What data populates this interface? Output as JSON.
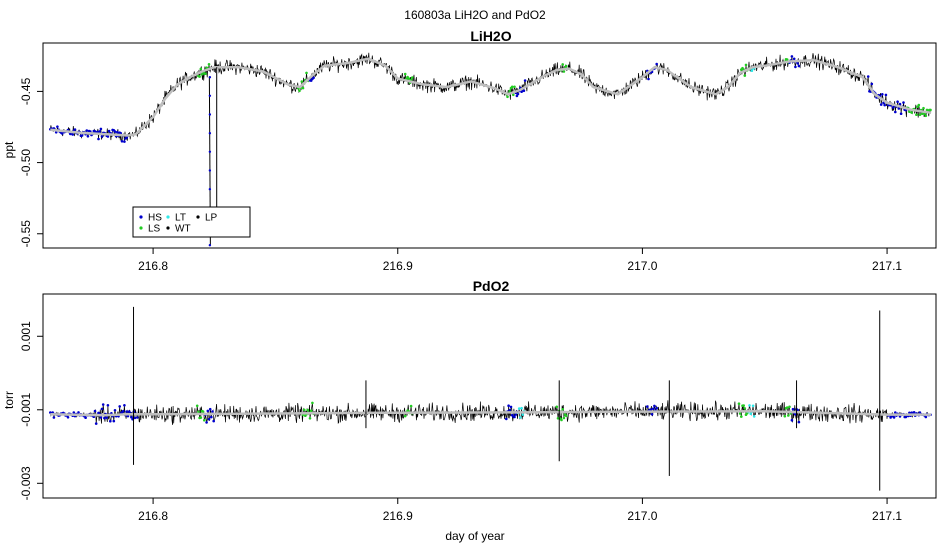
{
  "figure_title": "160803a   LiH2O and PdO2",
  "x_axis_label": "day of year",
  "legend": [
    {
      "label": "HS",
      "color": "#0000cd"
    },
    {
      "label": "LS",
      "color": "#22cc22"
    },
    {
      "label": "LT",
      "color": "#2ee8e8"
    },
    {
      "label": "WT",
      "color": "#000000"
    },
    {
      "label": "LP",
      "color": "#000000"
    }
  ],
  "colors": {
    "trace": "#000000",
    "smooth": "#bebebe",
    "HS": "#0000cd",
    "LS": "#22cc22",
    "LT": "#2ee8e8"
  },
  "chart_data": [
    {
      "type": "line",
      "title": "LiH2O",
      "xlabel": "",
      "ylabel": "ppt",
      "xlim": [
        216.755,
        217.12
      ],
      "ylim": [
        -0.56,
        -0.416
      ],
      "xticks": [
        216.8,
        216.9,
        217.0,
        217.1
      ],
      "xtick_labels": [
        "216.8",
        "216.9",
        "217.0",
        "217.1"
      ],
      "yticks": [
        -0.45,
        -0.5,
        -0.55
      ],
      "ytick_labels": [
        "-0.45",
        "-0.50",
        "-0.55"
      ],
      "grid": false,
      "legend_position": "bottom-left",
      "series": [
        {
          "type": "line",
          "x": [
            216.758,
            216.77,
            216.78,
            216.79,
            216.793,
            216.8,
            216.805,
            216.81,
            216.815,
            216.82,
            216.825,
            216.835,
            216.845,
            216.855,
            216.86,
            216.865,
            216.87,
            216.88,
            216.888,
            216.895,
            216.9,
            216.91,
            216.92,
            216.93,
            216.94,
            216.945,
            216.95,
            216.96,
            216.965,
            216.97,
            216.975,
            216.98,
            216.99,
            217.0,
            217.005,
            217.01,
            217.02,
            217.03,
            217.035,
            217.04,
            217.045,
            217.05,
            217.06,
            217.07,
            217.08,
            217.09,
            217.095,
            217.1,
            217.11,
            217.118
          ],
          "y": [
            -0.477,
            -0.479,
            -0.48,
            -0.481,
            -0.48,
            -0.468,
            -0.455,
            -0.445,
            -0.44,
            -0.436,
            -0.433,
            -0.433,
            -0.436,
            -0.445,
            -0.447,
            -0.439,
            -0.432,
            -0.43,
            -0.427,
            -0.432,
            -0.441,
            -0.445,
            -0.447,
            -0.443,
            -0.448,
            -0.452,
            -0.449,
            -0.439,
            -0.435,
            -0.434,
            -0.438,
            -0.447,
            -0.452,
            -0.44,
            -0.433,
            -0.435,
            -0.447,
            -0.452,
            -0.447,
            -0.437,
            -0.433,
            -0.432,
            -0.429,
            -0.428,
            -0.433,
            -0.44,
            -0.452,
            -0.458,
            -0.463,
            -0.465
          ]
        }
      ],
      "dropout": {
        "x": 216.823,
        "y_min": -0.558
      }
    },
    {
      "type": "line",
      "title": "PdO2",
      "xlabel": "day of year",
      "ylabel": "torr",
      "xlim": [
        216.755,
        217.12
      ],
      "ylim": [
        -0.0034,
        0.00215
      ],
      "xticks": [
        216.8,
        216.9,
        217.0,
        217.1
      ],
      "xtick_labels": [
        "216.8",
        "216.9",
        "217.0",
        "217.1"
      ],
      "yticks": [
        0.001,
        -0.001,
        -0.003
      ],
      "ytick_labels": [
        "0.001",
        "-0.001",
        "-0.003"
      ],
      "grid": false,
      "series": [
        {
          "type": "line",
          "x": [
            216.758,
            216.78,
            216.79,
            216.8,
            216.85,
            216.9,
            216.95,
            217.0,
            217.05,
            217.1,
            217.118
          ],
          "y": [
            -0.00112,
            -0.00115,
            -0.00112,
            -0.00112,
            -0.0011,
            -0.00108,
            -0.00107,
            -0.00105,
            -0.00104,
            -0.00113,
            -0.00113
          ]
        }
      ],
      "spikes": [
        {
          "x": 216.792,
          "y_min": -0.0025,
          "y_max": 0.0018
        },
        {
          "x": 216.887,
          "y_min": -0.0015,
          "y_max": -0.0002
        },
        {
          "x": 216.966,
          "y_min": -0.0024,
          "y_max": -0.0002
        },
        {
          "x": 217.011,
          "y_min": -0.0028,
          "y_max": -0.0002
        },
        {
          "x": 217.063,
          "y_min": -0.0015,
          "y_max": -0.0002
        },
        {
          "x": 217.097,
          "y_min": -0.0032,
          "y_max": 0.0017
        }
      ]
    }
  ]
}
